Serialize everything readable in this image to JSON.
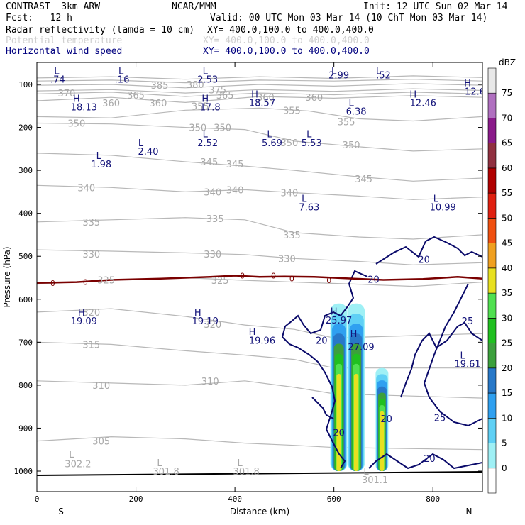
{
  "header": {
    "model": "CONTRAST  3km ARW",
    "org": "NCAR/MMM",
    "init": "Init: 12 UTC Sun 02 Mar 14",
    "fcst": "Fcst:   12 h",
    "valid": "Valid: 00 UTC Mon 03 Mar 14 (10 ChT Mon 03 Mar 14)",
    "lines": [
      {
        "name": "Radar reflectivity (lamda = 10 cm)",
        "xy": "XY= 400.0,100.0 to 400.0,400.0",
        "color": "#000000"
      },
      {
        "name": "Potential temperature",
        "xy": "XY= 400.0,100.0 to 400.0,400.0",
        "color": "#d0d0d0"
      },
      {
        "name": "Horizontal wind speed",
        "xy": "XY= 400.0,100.0 to 400.0,400.0",
        "color": "#00007f"
      }
    ]
  },
  "chart_data": {
    "type": "cross-section",
    "xlabel": "Distance (km)",
    "ylabel": "Pressure (hPa)",
    "xlim": [
      0,
      900
    ],
    "ylim": [
      1050,
      50
    ],
    "x_ticks": [
      0,
      200,
      400,
      600,
      800
    ],
    "y_ticks": [
      100,
      200,
      300,
      400,
      500,
      600,
      700,
      800,
      900,
      1000
    ],
    "x_end_labels": {
      "left": "S",
      "right": "N"
    },
    "colorbar": {
      "unit": "dBZ",
      "levels": [
        0,
        5,
        10,
        15,
        20,
        25,
        30,
        35,
        40,
        45,
        50,
        55,
        60,
        65,
        70,
        75
      ],
      "colors": [
        "#ffffff",
        "#9ff0f5",
        "#5fd0f5",
        "#2fa0f0",
        "#2878c8",
        "#3ca03c",
        "#20c020",
        "#50e050",
        "#e8e020",
        "#f0a020",
        "#f05010",
        "#e02010",
        "#b00000",
        "#903040",
        "#8a1a8a",
        "#b070c0",
        "#e8e8e8"
      ]
    },
    "theta_labels": [
      {
        "v": "385",
        "x": 248,
        "p": 102
      },
      {
        "v": "380",
        "x": 320,
        "p": 100
      },
      {
        "v": "375",
        "x": 365,
        "p": 112
      },
      {
        "v": "370",
        "x": 60,
        "p": 120
      },
      {
        "v": "365",
        "x": 200,
        "p": 125
      },
      {
        "v": "365",
        "x": 380,
        "p": 125
      },
      {
        "v": "360",
        "x": 150,
        "p": 143
      },
      {
        "v": "360",
        "x": 245,
        "p": 143
      },
      {
        "v": "360",
        "x": 462,
        "p": 130
      },
      {
        "v": "360",
        "x": 560,
        "p": 130
      },
      {
        "v": "355",
        "x": 330,
        "p": 150
      },
      {
        "v": "355",
        "x": 515,
        "p": 160
      },
      {
        "v": "355",
        "x": 625,
        "p": 187
      },
      {
        "v": "350",
        "x": 80,
        "p": 190
      },
      {
        "v": "350",
        "x": 325,
        "p": 200
      },
      {
        "v": "350",
        "x": 375,
        "p": 200
      },
      {
        "v": "350",
        "x": 510,
        "p": 235
      },
      {
        "v": "350",
        "x": 635,
        "p": 240
      },
      {
        "v": "345",
        "x": 348,
        "p": 280
      },
      {
        "v": "345",
        "x": 400,
        "p": 285
      },
      {
        "v": "345",
        "x": 660,
        "p": 320
      },
      {
        "v": "340",
        "x": 100,
        "p": 340
      },
      {
        "v": "340",
        "x": 355,
        "p": 350
      },
      {
        "v": "340",
        "x": 400,
        "p": 345
      },
      {
        "v": "340",
        "x": 510,
        "p": 352
      },
      {
        "v": "335",
        "x": 110,
        "p": 420
      },
      {
        "v": "335",
        "x": 360,
        "p": 412
      },
      {
        "v": "335",
        "x": 515,
        "p": 450
      },
      {
        "v": "330",
        "x": 110,
        "p": 495
      },
      {
        "v": "330",
        "x": 355,
        "p": 495
      },
      {
        "v": "330",
        "x": 505,
        "p": 505
      },
      {
        "v": "325",
        "x": 140,
        "p": 555
      },
      {
        "v": "325",
        "x": 370,
        "p": 556
      },
      {
        "v": "320",
        "x": 110,
        "p": 630
      },
      {
        "v": "320",
        "x": 355,
        "p": 658
      },
      {
        "v": "315",
        "x": 110,
        "p": 705
      },
      {
        "v": "310",
        "x": 130,
        "p": 800
      },
      {
        "v": "310",
        "x": 350,
        "p": 790
      },
      {
        "v": "305",
        "x": 130,
        "p": 930
      },
      {
        "v": "L",
        "x": 70,
        "p": 960
      },
      {
        "v": "302.2",
        "x": 83,
        "p": 983
      },
      {
        "v": "L",
        "x": 248,
        "p": 980
      },
      {
        "v": "301.8",
        "x": 261,
        "p": 1000
      },
      {
        "v": "L",
        "x": 410,
        "p": 980
      },
      {
        "v": "301.8",
        "x": 423,
        "p": 1000
      },
      {
        "v": "L",
        "x": 665,
        "p": 1000
      },
      {
        "v": "301.1",
        "x": 683,
        "p": 1020
      }
    ],
    "theta_contours": [
      {
        "level": 385,
        "pts": [
          [
            0,
            85
          ],
          [
            150,
            82
          ],
          [
            300,
            88
          ],
          [
            450,
            82
          ],
          [
            600,
            86
          ],
          [
            760,
            80
          ],
          [
            900,
            84
          ]
        ]
      },
      {
        "level": 380,
        "pts": [
          [
            0,
            92
          ],
          [
            150,
            90
          ],
          [
            300,
            96
          ],
          [
            450,
            90
          ],
          [
            600,
            92
          ],
          [
            760,
            88
          ],
          [
            900,
            92
          ]
        ]
      },
      {
        "level": 375,
        "pts": [
          [
            0,
            102
          ],
          [
            150,
            100
          ],
          [
            300,
            108
          ],
          [
            450,
            100
          ],
          [
            600,
            104
          ],
          [
            760,
            98
          ],
          [
            900,
            102
          ]
        ]
      },
      {
        "level": 370,
        "pts": [
          [
            0,
            115
          ],
          [
            150,
            112
          ],
          [
            300,
            120
          ],
          [
            450,
            112
          ],
          [
            600,
            116
          ],
          [
            760,
            110
          ],
          [
            900,
            114
          ]
        ]
      },
      {
        "level": 365,
        "pts": [
          [
            0,
            122
          ],
          [
            150,
            118
          ],
          [
            300,
            128
          ],
          [
            450,
            120
          ],
          [
            600,
            124
          ],
          [
            760,
            118
          ],
          [
            900,
            122
          ]
        ]
      },
      {
        "level": 360,
        "pts": [
          [
            0,
            138
          ],
          [
            150,
            130
          ],
          [
            300,
            142
          ],
          [
            450,
            128
          ],
          [
            600,
            132
          ],
          [
            760,
            126
          ],
          [
            900,
            130
          ]
        ]
      },
      {
        "level": 355,
        "pts": [
          [
            0,
            175
          ],
          [
            150,
            178
          ],
          [
            300,
            160
          ],
          [
            450,
            155
          ],
          [
            550,
            162
          ],
          [
            650,
            180
          ],
          [
            760,
            185
          ],
          [
            900,
            175
          ]
        ]
      },
      {
        "level": 350,
        "pts": [
          [
            0,
            190
          ],
          [
            150,
            192
          ],
          [
            300,
            200
          ],
          [
            420,
            205
          ],
          [
            520,
            232
          ],
          [
            650,
            245
          ],
          [
            760,
            255
          ],
          [
            900,
            250
          ]
        ]
      },
      {
        "level": 345,
        "pts": [
          [
            0,
            260
          ],
          [
            150,
            265
          ],
          [
            300,
            280
          ],
          [
            420,
            290
          ],
          [
            520,
            300
          ],
          [
            650,
            315
          ],
          [
            760,
            325
          ],
          [
            900,
            318
          ]
        ]
      },
      {
        "level": 340,
        "pts": [
          [
            0,
            335
          ],
          [
            150,
            340
          ],
          [
            300,
            350
          ],
          [
            420,
            345
          ],
          [
            520,
            352
          ],
          [
            650,
            360
          ],
          [
            760,
            368
          ],
          [
            900,
            362
          ]
        ]
      },
      {
        "level": 335,
        "pts": [
          [
            0,
            420
          ],
          [
            150,
            415
          ],
          [
            300,
            410
          ],
          [
            420,
            415
          ],
          [
            520,
            445
          ],
          [
            650,
            455
          ],
          [
            760,
            460
          ],
          [
            900,
            450
          ]
        ]
      },
      {
        "level": 330,
        "pts": [
          [
            0,
            485
          ],
          [
            150,
            488
          ],
          [
            300,
            492
          ],
          [
            420,
            496
          ],
          [
            520,
            505
          ],
          [
            650,
            512
          ],
          [
            760,
            520
          ],
          [
            900,
            515
          ]
        ]
      },
      {
        "level": 325,
        "pts": [
          [
            0,
            565
          ],
          [
            150,
            555
          ],
          [
            300,
            550
          ],
          [
            420,
            556
          ],
          [
            520,
            560
          ],
          [
            650,
            565
          ],
          [
            760,
            570
          ],
          [
            900,
            560
          ]
        ]
      },
      {
        "level": 320,
        "pts": [
          [
            0,
            630
          ],
          [
            150,
            622
          ],
          [
            300,
            640
          ],
          [
            420,
            660
          ],
          [
            520,
            670
          ],
          [
            600,
            690
          ],
          [
            900,
            680
          ]
        ]
      },
      {
        "level": 315,
        "pts": [
          [
            0,
            700
          ],
          [
            150,
            705
          ],
          [
            300,
            720
          ],
          [
            420,
            730
          ],
          [
            520,
            740
          ],
          [
            600,
            760
          ],
          [
            900,
            760
          ]
        ]
      },
      {
        "level": 310,
        "pts": [
          [
            0,
            790
          ],
          [
            150,
            795
          ],
          [
            300,
            800
          ],
          [
            420,
            790
          ],
          [
            520,
            805
          ],
          [
            600,
            820
          ],
          [
            900,
            830
          ]
        ]
      },
      {
        "level": 305,
        "pts": [
          [
            0,
            930
          ],
          [
            150,
            920
          ],
          [
            300,
            925
          ],
          [
            420,
            935
          ],
          [
            520,
            940
          ],
          [
            600,
            945
          ],
          [
            900,
            950
          ]
        ]
      }
    ],
    "freezing_line": {
      "level": 0,
      "pts": [
        [
          0,
          562
        ],
        [
          80,
          560
        ],
        [
          150,
          555
        ],
        [
          250,
          552
        ],
        [
          350,
          548
        ],
        [
          400,
          545
        ],
        [
          450,
          548
        ],
        [
          500,
          547
        ],
        [
          560,
          548
        ],
        [
          640,
          552
        ],
        [
          700,
          555
        ],
        [
          780,
          553
        ],
        [
          850,
          548
        ],
        [
          900,
          552
        ]
      ],
      "labels": [
        {
          "x": 32,
          "p": 562
        },
        {
          "x": 98,
          "p": 560
        },
        {
          "x": 415,
          "p": 545
        },
        {
          "x": 478,
          "p": 545
        },
        {
          "x": 515,
          "p": 552
        },
        {
          "x": 590,
          "p": 556
        }
      ],
      "label_text": "0"
    },
    "wind_labels": [
      {
        "v": "L",
        "x": 40,
        "p": 68
      },
      {
        "v": ".74",
        "x": 42,
        "p": 88
      },
      {
        "v": "L",
        "x": 170,
        "p": 68
      },
      {
        "v": ".16",
        "x": 172,
        "p": 88
      },
      {
        "v": "L",
        "x": 340,
        "p": 68
      },
      {
        "v": "2.53",
        "x": 345,
        "p": 88
      },
      {
        "v": "L",
        "x": 600,
        "p": 68
      },
      {
        "v": "2.99",
        "x": 610,
        "p": 78
      },
      {
        "v": "L",
        "x": 690,
        "p": 68
      },
      {
        "v": ".52",
        "x": 700,
        "p": 78
      },
      {
        "v": "H",
        "x": 870,
        "p": 96
      },
      {
        "v": "12.6",
        "x": 885,
        "p": 116
      },
      {
        "v": "H",
        "x": 80,
        "p": 132
      },
      {
        "v": "18.13",
        "x": 95,
        "p": 152
      },
      {
        "v": "H",
        "x": 340,
        "p": 132
      },
      {
        "v": "17.8",
        "x": 350,
        "p": 152
      },
      {
        "v": "H",
        "x": 440,
        "p": 122
      },
      {
        "v": "18.57",
        "x": 455,
        "p": 142
      },
      {
        "v": "H",
        "x": 760,
        "p": 122
      },
      {
        "v": "12.46",
        "x": 780,
        "p": 142
      },
      {
        "v": "L",
        "x": 635,
        "p": 142
      },
      {
        "v": "6.38",
        "x": 645,
        "p": 162
      },
      {
        "v": "L",
        "x": 210,
        "p": 235
      },
      {
        "v": "2.40",
        "x": 225,
        "p": 255
      },
      {
        "v": "L",
        "x": 340,
        "p": 215
      },
      {
        "v": "2.52",
        "x": 345,
        "p": 235
      },
      {
        "v": "L",
        "x": 470,
        "p": 215
      },
      {
        "v": "5.69",
        "x": 475,
        "p": 235
      },
      {
        "v": "L",
        "x": 550,
        "p": 215
      },
      {
        "v": "5.53",
        "x": 555,
        "p": 235
      },
      {
        "v": "L",
        "x": 125,
        "p": 265
      },
      {
        "v": "1.98",
        "x": 130,
        "p": 285
      },
      {
        "v": "L",
        "x": 540,
        "p": 365
      },
      {
        "v": "7.63",
        "x": 550,
        "p": 385
      },
      {
        "v": "L",
        "x": 806,
        "p": 365
      },
      {
        "v": "10.99",
        "x": 820,
        "p": 385
      },
      {
        "v": "H",
        "x": 90,
        "p": 630
      },
      {
        "v": "19.09",
        "x": 95,
        "p": 650
      },
      {
        "v": "H",
        "x": 325,
        "p": 630
      },
      {
        "v": "19.19",
        "x": 340,
        "p": 650
      },
      {
        "v": "H",
        "x": 435,
        "p": 675
      },
      {
        "v": "19.96",
        "x": 455,
        "p": 695
      },
      {
        "v": "H",
        "x": 600,
        "p": 628
      },
      {
        "v": "25.97",
        "x": 610,
        "p": 648
      },
      {
        "v": "H",
        "x": 640,
        "p": 680
      },
      {
        "v": "27.09",
        "x": 655,
        "p": 710
      },
      {
        "v": "L",
        "x": 860,
        "p": 730
      },
      {
        "v": "19.61",
        "x": 870,
        "p": 750
      },
      {
        "v": "20",
        "x": 782,
        "p": 507
      },
      {
        "v": "20",
        "x": 680,
        "p": 553
      },
      {
        "v": "25",
        "x": 870,
        "p": 650
      },
      {
        "v": "20",
        "x": 575,
        "p": 695
      },
      {
        "v": "20",
        "x": 610,
        "p": 910
      },
      {
        "v": "20",
        "x": 706,
        "p": 878
      },
      {
        "v": "25",
        "x": 814,
        "p": 875
      },
      {
        "v": "20",
        "x": 793,
        "p": 970
      }
    ],
    "reflectivity_cells": [
      {
        "x": 610,
        "p_top": 610,
        "w": 10,
        "max": "35"
      },
      {
        "x": 645,
        "p_top": 610,
        "w": 10,
        "max": "35"
      },
      {
        "x": 697,
        "p_top": 760,
        "w": 7,
        "max": "30"
      }
    ]
  }
}
